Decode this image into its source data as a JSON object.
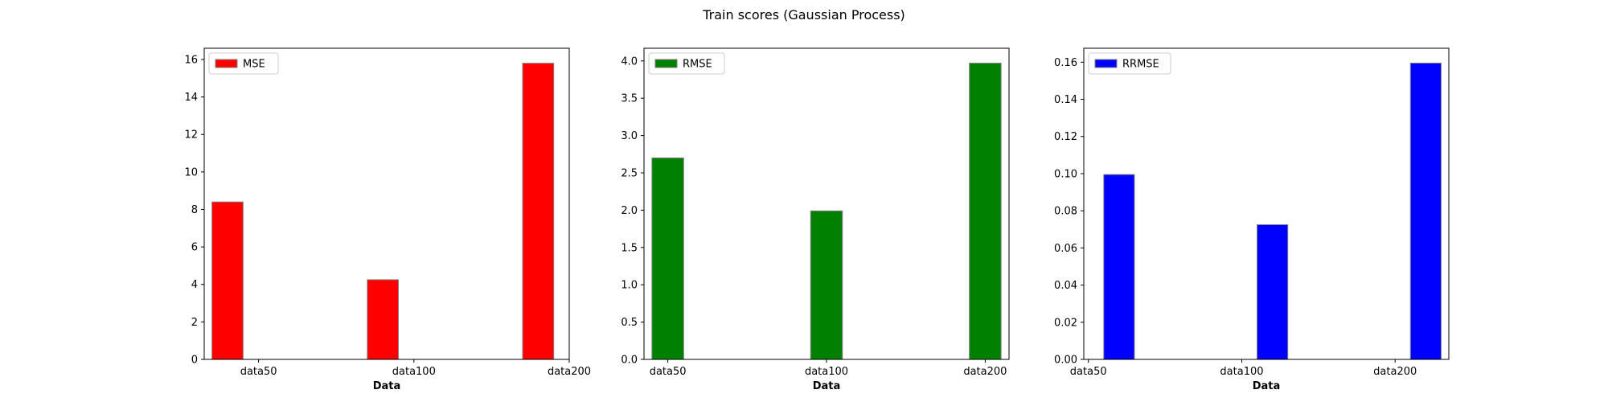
{
  "figure": {
    "suptitle": "Train scores (Gaussian Process)"
  },
  "chart_data": [
    {
      "type": "bar",
      "title": "",
      "xlabel": "Data",
      "ylabel": "",
      "categories": [
        "data50",
        "data100",
        "data200"
      ],
      "series": [
        {
          "name": "MSE",
          "values": [
            8.4,
            4.25,
            15.8
          ],
          "color": "#ff0000"
        }
      ],
      "ylim": [
        0,
        16.6
      ],
      "yticks": [
        0,
        2,
        4,
        6,
        8,
        10,
        12,
        14,
        16
      ],
      "ytick_labels": [
        "0",
        "2",
        "4",
        "6",
        "8",
        "10",
        "12",
        "14",
        "16"
      ],
      "xticks": [
        0.2,
        1.2,
        2.2
      ],
      "xlim": [
        -0.15,
        2.2
      ],
      "bar_offset": 0,
      "bar_width": 0.2,
      "legend": "top-left",
      "grid": false
    },
    {
      "type": "bar",
      "title": "",
      "xlabel": "Data",
      "ylabel": "",
      "categories": [
        "data50",
        "data100",
        "data200"
      ],
      "series": [
        {
          "name": "RMSE",
          "values": [
            2.7,
            1.99,
            3.97
          ],
          "color": "#008000"
        }
      ],
      "ylim": [
        0,
        4.17
      ],
      "yticks": [
        0,
        0.5,
        1.0,
        1.5,
        2.0,
        2.5,
        3.0,
        3.5,
        4.0
      ],
      "ytick_labels": [
        "0.0",
        "0.5",
        "1.0",
        "1.5",
        "2.0",
        "2.5",
        "3.0",
        "3.5",
        "4.0"
      ],
      "xticks": [
        0,
        1,
        2
      ],
      "xlim": [
        -0.15,
        2.15
      ],
      "bar_offset": 0,
      "bar_width": 0.2,
      "legend": "top-left",
      "grid": false
    },
    {
      "type": "bar",
      "title": "",
      "xlabel": "Data",
      "ylabel": "",
      "categories": [
        "data50",
        "data100",
        "data200"
      ],
      "series": [
        {
          "name": "RRMSE",
          "values": [
            0.0995,
            0.0725,
            0.1595
          ],
          "color": "#0000ff"
        }
      ],
      "ylim": [
        0,
        0.1675
      ],
      "yticks": [
        0,
        0.02,
        0.04,
        0.06,
        0.08,
        0.1,
        0.12,
        0.14,
        0.16
      ],
      "ytick_labels": [
        "0.00",
        "0.02",
        "0.04",
        "0.06",
        "0.08",
        "0.10",
        "0.12",
        "0.14",
        "0.16"
      ],
      "xticks": [
        -0.2,
        0.8,
        1.8
      ],
      "xlim": [
        -0.23,
        2.15
      ],
      "bar_offset": 0,
      "bar_width": 0.2,
      "legend": "top-left",
      "grid": false
    }
  ]
}
